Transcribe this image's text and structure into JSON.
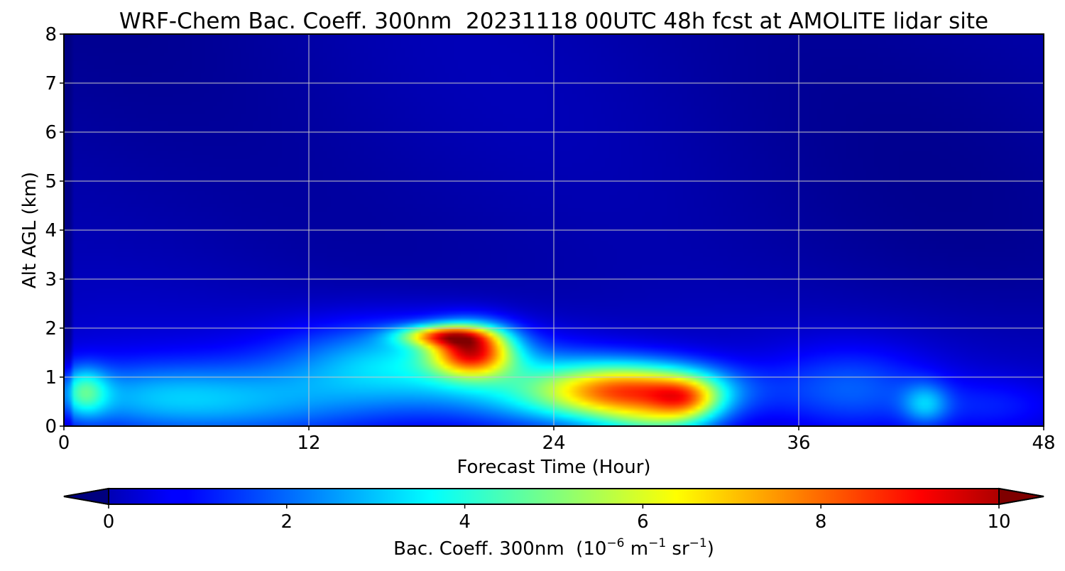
{
  "chart_data": {
    "type": "heatmap",
    "title": "WRF-Chem Bac. Coeff. 300nm  20231118 00UTC 48h fcst at AMOLITE lidar site",
    "xlabel": "Forecast Time (Hour)",
    "ylabel": "Alt AGL (km)",
    "xlim": [
      0,
      48
    ],
    "ylim": [
      0,
      8
    ],
    "xticks": [
      "0",
      "12",
      "24",
      "36",
      "48"
    ],
    "yticks": [
      "0",
      "1",
      "2",
      "3",
      "4",
      "5",
      "6",
      "7",
      "8"
    ],
    "grid": true,
    "colorbar": {
      "label_main": "Bac. Coeff. 300nm  (10",
      "label_exp1": "−6",
      "label_unit1": " m",
      "label_exp2": "−1",
      "label_unit2": " sr",
      "label_exp3": "−1",
      "label_end": ")",
      "range": [
        0,
        10
      ],
      "ticks": [
        "0",
        "2",
        "4",
        "6",
        "8",
        "10"
      ],
      "colormap": "jet",
      "extend": "both"
    },
    "features": [
      {
        "t": 28,
        "z": 0.7,
        "st": 3.0,
        "sz": 0.4,
        "v": 6.5
      },
      {
        "t": 20.0,
        "z": 1.55,
        "st": 1.4,
        "sz": 0.35,
        "v": 6.5
      },
      {
        "t": 18.5,
        "z": 1.85,
        "st": 1.5,
        "sz": 0.15,
        "v": 4.5
      },
      {
        "t": 30.5,
        "z": 0.55,
        "st": 1.2,
        "sz": 0.3,
        "v": 3.0
      },
      {
        "t": 29,
        "z": 0.05,
        "st": 2.0,
        "sz": 0.25,
        "v": 2.0
      },
      {
        "t": 23.5,
        "z": 0.7,
        "st": 3.5,
        "sz": 0.6,
        "v": 2.2
      },
      {
        "t": 16.5,
        "z": 1.3,
        "st": 4.0,
        "sz": 0.6,
        "v": 2.6
      },
      {
        "t": 4,
        "z": 0.6,
        "st": 4.0,
        "sz": 0.5,
        "v": 1.6
      },
      {
        "t": 10,
        "z": 0.45,
        "st": 5.0,
        "sz": 0.55,
        "v": 1.4
      },
      {
        "t": 38.5,
        "z": 0.75,
        "st": 2.8,
        "sz": 0.6,
        "v": 1.4
      },
      {
        "t": 42.2,
        "z": 0.45,
        "st": 0.8,
        "sz": 0.3,
        "v": 1.8
      },
      {
        "t": 45.5,
        "z": 0.4,
        "st": 2.5,
        "sz": 0.4,
        "v": 0.8
      },
      {
        "t": 1.0,
        "z": 0.7,
        "st": 0.8,
        "sz": 0.35,
        "v": 2.5
      }
    ]
  }
}
